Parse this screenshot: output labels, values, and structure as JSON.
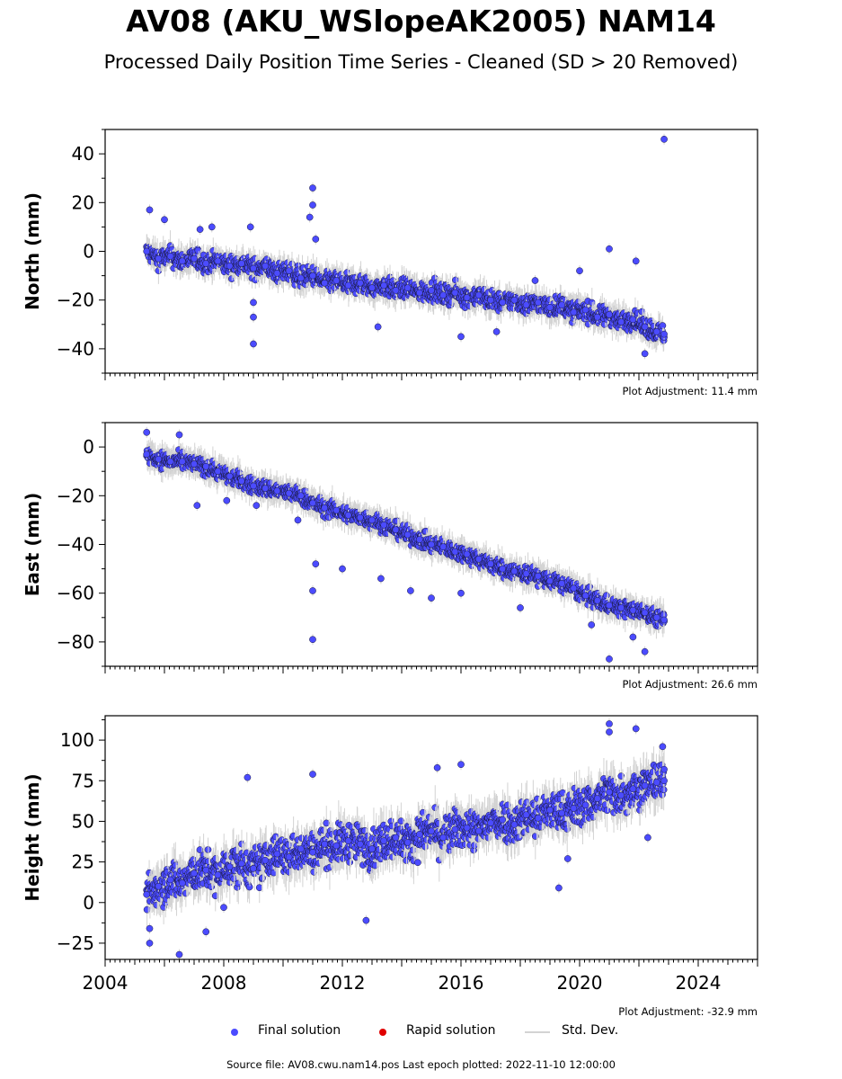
{
  "title": "AV08 (AKU_WSlopeAK2005) NAM14",
  "subtitle": "Processed Daily Position Time Series - Cleaned (SD > 20 Removed)",
  "colors": {
    "final": "#4b4bff",
    "rapid": "#e00000",
    "stddev": "#d3d3d3"
  },
  "legend": {
    "final": "Final solution",
    "rapid": "Rapid solution",
    "stddev": "Std. Dev."
  },
  "footer": "Source file: AV08.cwu.nam14.pos  Last epoch plotted: 2022-11-10 12:00:00",
  "chart_data": [
    {
      "type": "scatter",
      "ylabel": "North (mm)",
      "adjustment": "Plot Adjustment: 11.4 mm",
      "xlim": [
        2004,
        2026
      ],
      "ylim": [
        -50,
        50
      ],
      "yticks": [
        -40,
        -20,
        0,
        20,
        40
      ],
      "trend": {
        "start": [
          2005.4,
          -1
        ],
        "end": [
          2022.85,
          -34
        ]
      },
      "series": [
        {
          "points": [
            [
              2005.4,
              0
            ],
            [
              2005.8,
              -3
            ],
            [
              2006.2,
              -2
            ],
            [
              2006.6,
              -4
            ],
            [
              2007.0,
              -3
            ],
            [
              2007.4,
              -5
            ],
            [
              2007.8,
              -4
            ],
            [
              2008.2,
              -6
            ],
            [
              2008.6,
              -5
            ],
            [
              2009.0,
              -7
            ],
            [
              2009.4,
              -6
            ],
            [
              2009.8,
              -9
            ],
            [
              2010.2,
              -8
            ],
            [
              2010.6,
              -11
            ],
            [
              2011.0,
              -10
            ],
            [
              2011.4,
              -13
            ],
            [
              2011.8,
              -12
            ],
            [
              2012.2,
              -14
            ],
            [
              2012.6,
              -13
            ],
            [
              2013.0,
              -15
            ],
            [
              2013.4,
              -14
            ],
            [
              2013.8,
              -16
            ],
            [
              2014.2,
              -15
            ],
            [
              2014.6,
              -17
            ],
            [
              2015.0,
              -16
            ],
            [
              2015.4,
              -18
            ],
            [
              2015.8,
              -17
            ],
            [
              2016.2,
              -19
            ],
            [
              2016.6,
              -18
            ],
            [
              2017.0,
              -20
            ],
            [
              2017.4,
              -21
            ],
            [
              2017.8,
              -20
            ],
            [
              2018.2,
              -22
            ],
            [
              2018.6,
              -21
            ],
            [
              2019.0,
              -23
            ],
            [
              2019.4,
              -22
            ],
            [
              2019.8,
              -25
            ],
            [
              2020.2,
              -24
            ],
            [
              2020.6,
              -27
            ],
            [
              2021.0,
              -26
            ],
            [
              2021.4,
              -29
            ],
            [
              2021.8,
              -28
            ],
            [
              2022.2,
              -31
            ],
            [
              2022.6,
              -33
            ],
            [
              2022.85,
              -34
            ],
            [
              2005.5,
              17
            ],
            [
              2006.0,
              13
            ],
            [
              2007.2,
              9
            ],
            [
              2007.6,
              10
            ],
            [
              2009.0,
              -38
            ],
            [
              2009.0,
              -27
            ],
            [
              2009.0,
              -21
            ],
            [
              2008.9,
              10
            ],
            [
              2011.0,
              26
            ],
            [
              2011.0,
              19
            ],
            [
              2010.9,
              14
            ],
            [
              2011.1,
              5
            ],
            [
              2013.2,
              -31
            ],
            [
              2016.0,
              -35
            ],
            [
              2017.2,
              -33
            ],
            [
              2018.5,
              -12
            ],
            [
              2020.0,
              -8
            ],
            [
              2021.0,
              1
            ],
            [
              2021.9,
              -4
            ],
            [
              2022.2,
              -42
            ],
            [
              2022.85,
              46
            ]
          ]
        }
      ]
    },
    {
      "type": "scatter",
      "ylabel": "East (mm)",
      "adjustment": "Plot Adjustment: 26.6 mm",
      "xlim": [
        2004,
        2026
      ],
      "ylim": [
        -90,
        10
      ],
      "yticks": [
        -80,
        -60,
        -40,
        -20,
        0
      ],
      "trend": {
        "start": [
          2005.4,
          -3
        ],
        "end": [
          2022.85,
          -71
        ]
      },
      "series": [
        {
          "points": [
            [
              2005.4,
              -3
            ],
            [
              2005.8,
              -5
            ],
            [
              2006.2,
              -6
            ],
            [
              2006.6,
              -6
            ],
            [
              2007.0,
              -7
            ],
            [
              2007.4,
              -8
            ],
            [
              2007.8,
              -10
            ],
            [
              2008.2,
              -12
            ],
            [
              2008.6,
              -14
            ],
            [
              2009.0,
              -16
            ],
            [
              2009.4,
              -17
            ],
            [
              2009.8,
              -18
            ],
            [
              2010.2,
              -19
            ],
            [
              2010.6,
              -20
            ],
            [
              2011.0,
              -23
            ],
            [
              2011.4,
              -25
            ],
            [
              2011.8,
              -26
            ],
            [
              2012.2,
              -28
            ],
            [
              2012.6,
              -29
            ],
            [
              2013.0,
              -30
            ],
            [
              2013.4,
              -32
            ],
            [
              2013.8,
              -34
            ],
            [
              2014.2,
              -36
            ],
            [
              2014.6,
              -38
            ],
            [
              2015.0,
              -40
            ],
            [
              2015.4,
              -41
            ],
            [
              2015.8,
              -43
            ],
            [
              2016.2,
              -44
            ],
            [
              2016.6,
              -46
            ],
            [
              2017.0,
              -48
            ],
            [
              2017.4,
              -50
            ],
            [
              2017.8,
              -51
            ],
            [
              2018.2,
              -52
            ],
            [
              2018.6,
              -53
            ],
            [
              2019.0,
              -55
            ],
            [
              2019.4,
              -56
            ],
            [
              2019.8,
              -58
            ],
            [
              2020.2,
              -61
            ],
            [
              2020.6,
              -63
            ],
            [
              2021.0,
              -65
            ],
            [
              2021.4,
              -66
            ],
            [
              2021.8,
              -67
            ],
            [
              2022.2,
              -68
            ],
            [
              2022.6,
              -70
            ],
            [
              2022.85,
              -71
            ],
            [
              2005.4,
              6
            ],
            [
              2006.5,
              5
            ],
            [
              2007.1,
              -24
            ],
            [
              2008.1,
              -22
            ],
            [
              2009.1,
              -24
            ],
            [
              2010.5,
              -30
            ],
            [
              2011.0,
              -79
            ],
            [
              2011.0,
              -59
            ],
            [
              2011.1,
              -48
            ],
            [
              2012.0,
              -50
            ],
            [
              2013.3,
              -54
            ],
            [
              2014.3,
              -59
            ],
            [
              2015.0,
              -62
            ],
            [
              2016.0,
              -60
            ],
            [
              2018.0,
              -66
            ],
            [
              2020.4,
              -73
            ],
            [
              2021.0,
              -87
            ],
            [
              2021.8,
              -78
            ],
            [
              2022.2,
              -84
            ]
          ]
        }
      ]
    },
    {
      "type": "scatter",
      "ylabel": "Height (mm)",
      "adjustment": "Plot Adjustment: -32.9 mm",
      "xlim": [
        2004,
        2026
      ],
      "ylim": [
        -35,
        115
      ],
      "yticks": [
        -25,
        0,
        25,
        50,
        75,
        100
      ],
      "xticks": [
        2004,
        2008,
        2012,
        2016,
        2020,
        2024
      ],
      "trend": {
        "start": [
          2005.4,
          5
        ],
        "end": [
          2022.85,
          72
        ]
      },
      "series": [
        {
          "points": [
            [
              2005.4,
              5
            ],
            [
              2005.8,
              10
            ],
            [
              2006.2,
              14
            ],
            [
              2006.6,
              12
            ],
            [
              2007.0,
              18
            ],
            [
              2007.4,
              20
            ],
            [
              2007.8,
              17
            ],
            [
              2008.2,
              22
            ],
            [
              2008.6,
              24
            ],
            [
              2009.0,
              21
            ],
            [
              2009.4,
              26
            ],
            [
              2009.8,
              30
            ],
            [
              2010.2,
              28
            ],
            [
              2010.6,
              33
            ],
            [
              2011.0,
              31
            ],
            [
              2011.4,
              36
            ],
            [
              2011.8,
              35
            ],
            [
              2012.2,
              38
            ],
            [
              2012.6,
              36
            ],
            [
              2013.0,
              33
            ],
            [
              2013.4,
              38
            ],
            [
              2013.8,
              40
            ],
            [
              2014.2,
              37
            ],
            [
              2014.6,
              42
            ],
            [
              2015.0,
              44
            ],
            [
              2015.4,
              40
            ],
            [
              2015.8,
              45
            ],
            [
              2016.2,
              46
            ],
            [
              2016.6,
              44
            ],
            [
              2017.0,
              49
            ],
            [
              2017.4,
              51
            ],
            [
              2017.8,
              48
            ],
            [
              2018.2,
              54
            ],
            [
              2018.6,
              52
            ],
            [
              2019.0,
              57
            ],
            [
              2019.4,
              55
            ],
            [
              2019.8,
              58
            ],
            [
              2020.2,
              60
            ],
            [
              2020.6,
              64
            ],
            [
              2021.0,
              68
            ],
            [
              2021.4,
              66
            ],
            [
              2021.8,
              70
            ],
            [
              2022.2,
              72
            ],
            [
              2022.6,
              74
            ],
            [
              2022.85,
              75
            ],
            [
              2005.5,
              -25
            ],
            [
              2005.5,
              -16
            ],
            [
              2006.5,
              -32
            ],
            [
              2007.4,
              -18
            ],
            [
              2008.0,
              -3
            ],
            [
              2008.8,
              77
            ],
            [
              2011.0,
              79
            ],
            [
              2012.8,
              -11
            ],
            [
              2015.2,
              83
            ],
            [
              2016.0,
              85
            ],
            [
              2019.3,
              9
            ],
            [
              2019.6,
              27
            ],
            [
              2021.0,
              110
            ],
            [
              2021.0,
              105
            ],
            [
              2021.9,
              107
            ],
            [
              2022.3,
              40
            ],
            [
              2022.8,
              96
            ]
          ]
        }
      ]
    }
  ]
}
